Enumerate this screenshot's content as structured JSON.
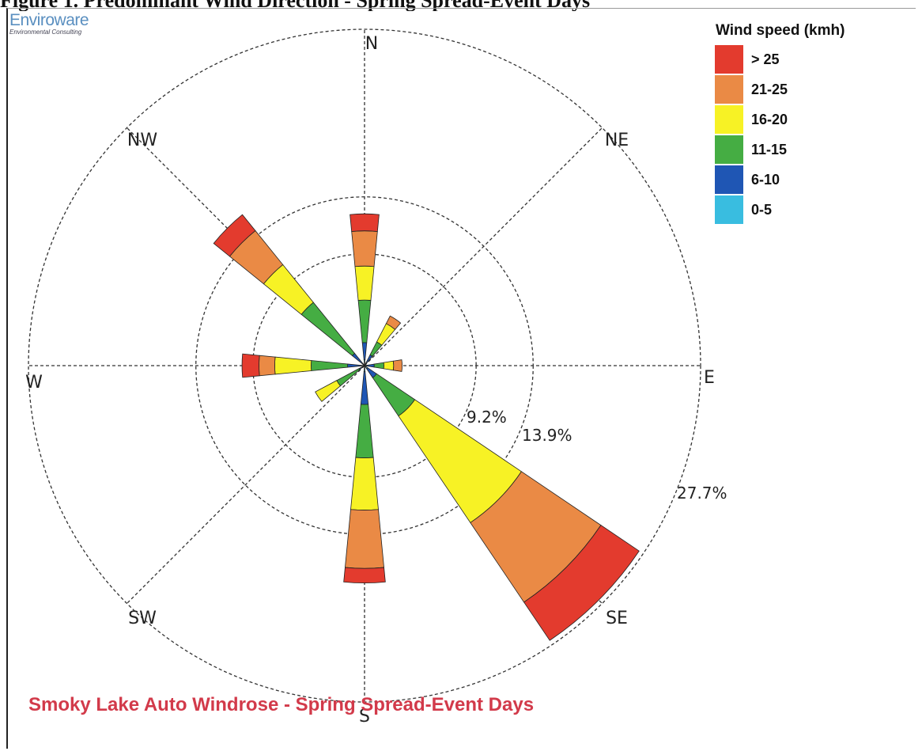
{
  "header": {
    "caption": "Figure 1. Predominant Wind Direction - Spring Spread-Event Days"
  },
  "brand": {
    "name": "Enviroware",
    "tagline": "Environmental Consulting"
  },
  "chart_data": {
    "type": "windrose",
    "title": "Smoky Lake Auto Windrose - Spring Spread-Event Days",
    "legend_title": "Wind speed (kmh)",
    "legend_placement": "top-right",
    "speed_bins": [
      "> 25",
      "21-25",
      "16-20",
      "11-15",
      "6-10",
      "0-5"
    ],
    "bin_colors": [
      "#e33b2e",
      "#ea8a45",
      "#f7f225",
      "#45ad43",
      "#1f56b4",
      "#39bde0"
    ],
    "directions": [
      "N",
      "NE",
      "E",
      "SE",
      "S",
      "SW",
      "W",
      "NW"
    ],
    "ring_labels": [
      "9.2%",
      "13.9%",
      "27.7%"
    ],
    "ring_values": [
      9.2,
      13.9,
      27.7
    ],
    "max_percent": 27.7,
    "sectors": [
      {
        "bearing": 0,
        "halfwidth": 5.5,
        "cumulative": [
          0.5,
          1.9,
          5.4,
          8.2,
          11.1,
          12.5
        ]
      },
      {
        "bearing": 33.75,
        "halfwidth": 6.5,
        "cumulative": [
          0.3,
          1.0,
          2.2,
          3.9,
          4.6,
          4.6
        ]
      },
      {
        "bearing": 90,
        "halfwidth": 9,
        "cumulative": [
          0.2,
          0.8,
          1.6,
          2.4,
          3.1,
          3.1
        ]
      },
      {
        "bearing": 135,
        "halfwidth": 11,
        "cumulative": [
          0.3,
          1.2,
          5.0,
          15.6,
          23.5,
          27.3
        ]
      },
      {
        "bearing": 180,
        "halfwidth": 5.5,
        "cumulative": [
          0.5,
          3.2,
          7.6,
          11.9,
          16.7,
          17.9
        ]
      },
      {
        "bearing": 236,
        "halfwidth": 6,
        "cumulative": [
          0.2,
          0.5,
          2.6,
          4.6,
          4.6,
          4.6
        ]
      },
      {
        "bearing": 270,
        "halfwidth": 5.5,
        "cumulative": [
          0.3,
          1.4,
          4.4,
          7.4,
          8.7,
          10.1
        ]
      },
      {
        "bearing": 315,
        "halfwidth": 6,
        "cumulative": [
          0.2,
          1.3,
          6.7,
          10.7,
          14.3,
          16.0
        ]
      }
    ]
  }
}
